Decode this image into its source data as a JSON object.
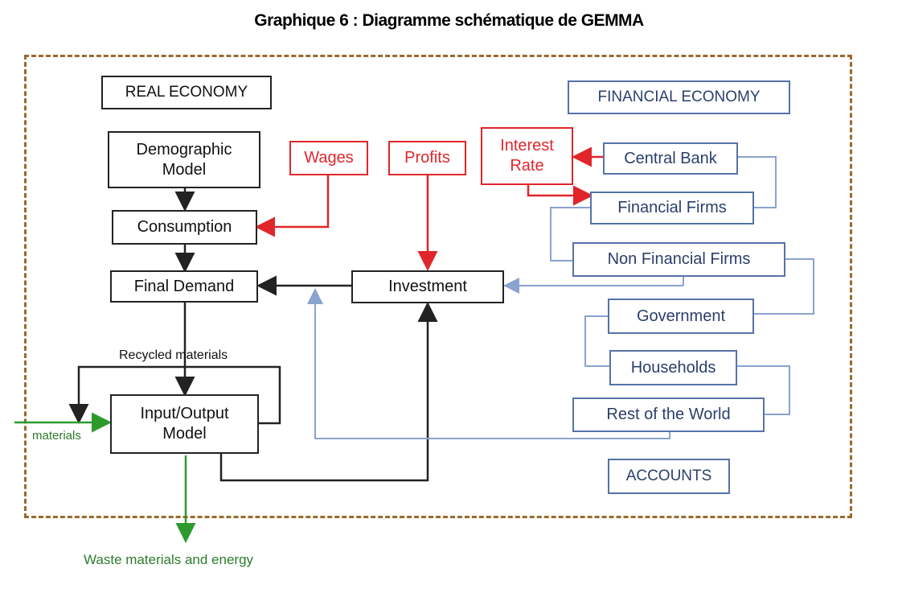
{
  "title": "Graphique 6 : Diagramme schématique de GEMMA",
  "colors": {
    "frame": "#9a6a2c",
    "real": "#222222",
    "red": "#e0262b",
    "blue": "#5572a8",
    "blue_line": "#8aa3cf",
    "green": "#2e9a2e"
  },
  "real_economy": {
    "header": "REAL ECONOMY",
    "demographic": "Demographic\nModel",
    "consumption": "Consumption",
    "final_demand": "Final Demand",
    "investment": "Investment",
    "io_model": "Input/Output\nModel"
  },
  "flows": {
    "wages": "Wages",
    "profits": "Profits",
    "interest_rate": "Interest\nRate"
  },
  "financial_economy": {
    "header": "FINANCIAL ECONOMY",
    "central_bank": "Central Bank",
    "financial_firms": "Financial Firms",
    "non_financial_firms": "Non Financial Firms",
    "government": "Government",
    "households": "Households",
    "rest_of_world": "Rest of the World",
    "accounts": "ACCOUNTS"
  },
  "labels": {
    "recycled": "Recycled materials",
    "materials": "materials",
    "waste": "Waste materials and energy"
  }
}
